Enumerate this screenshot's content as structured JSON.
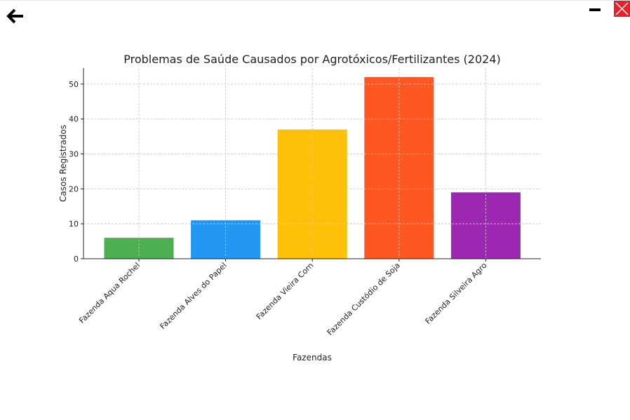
{
  "window": {
    "back_icon": "arrow-left-icon",
    "minimize_icon": "minimize-icon",
    "close_icon": "close-icon",
    "close_color": "#e8202a"
  },
  "chart_data": {
    "type": "bar",
    "title": "Problemas de Saúde Causados por Agrotóxicos/Fertilizantes (2024)",
    "xlabel": "Fazendas",
    "ylabel": "Casos Registrados",
    "categories": [
      "Fazenda Aqua Rochel",
      "Fazenda Alves do Papel",
      "Fazenda Vieira Corn",
      "Fazenda Custódio de Soja",
      "Fazenda Silveira Agro"
    ],
    "values": [
      6,
      11,
      37,
      52,
      19
    ],
    "colors": [
      "#4caf50",
      "#2196f3",
      "#ffc107",
      "#ff5722",
      "#9c27b0"
    ],
    "ylim": [
      0,
      54.6
    ],
    "yticks": [
      0,
      10,
      20,
      30,
      40,
      50
    ],
    "grid": true,
    "legend": "none"
  }
}
